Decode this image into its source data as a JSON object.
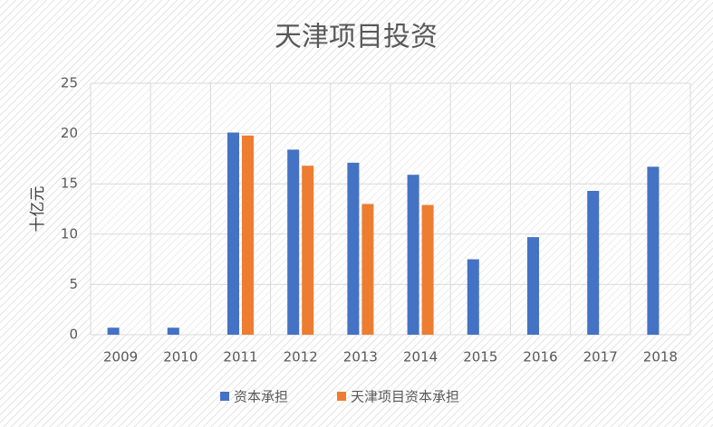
{
  "chart_data": {
    "type": "bar",
    "title": "天津项目投资",
    "y_label": "十亿元",
    "categories": [
      "2009",
      "2010",
      "2011",
      "2012",
      "2013",
      "2014",
      "2015",
      "2016",
      "2017",
      "2018"
    ],
    "series": [
      {
        "name": "资本承担",
        "color": "#4472c4",
        "values": [
          0.7,
          0.7,
          20.1,
          18.4,
          17.1,
          15.9,
          7.5,
          9.7,
          14.3,
          16.7
        ]
      },
      {
        "name": "天津项目资本承担",
        "color": "#ed7d31",
        "values": [
          null,
          null,
          19.8,
          16.8,
          13.0,
          12.9,
          null,
          null,
          null,
          null
        ]
      }
    ],
    "ylim": [
      0,
      25
    ],
    "yticks": [
      0,
      5,
      10,
      15,
      20,
      25
    ],
    "grid": true
  }
}
